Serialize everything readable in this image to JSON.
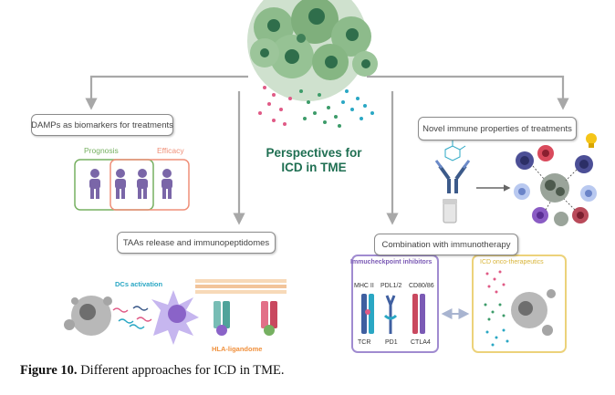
{
  "center_title": [
    "Perspectives for",
    "ICD in TME"
  ],
  "boxes": {
    "damps": "DAMPs as biomarkers for treatments",
    "novel": "Novel immune properties of  treatments",
    "taas": "TAAs release and immunopeptidomes",
    "combination": "Combination with immunotherapy"
  },
  "damps_panel": {
    "prognosis": "Prognosis",
    "efficacy": "Efficacy"
  },
  "taas_panel": {
    "dcs": "DCs activation",
    "hla": "HLA-ligandome"
  },
  "combo_panel": {
    "checkpoint_title": "Immucheckpoint inhibitors",
    "oncotherapeutics_title": "ICD onco-therapeutics",
    "top_labels": [
      "MHC II",
      "PDL1/2",
      "CD80/86"
    ],
    "bottom_labels": [
      "TCR",
      "PD1",
      "CTLA4"
    ]
  },
  "caption": {
    "label": "Figure 10.",
    "text": " Different approaches for ICD in TME."
  },
  "colors": {
    "arrow": "#a8a8a8",
    "title_green": "#1f6f52",
    "prognosis": "#76b061",
    "efficacy": "#ef8f78",
    "dcs": "#2aa7c4",
    "hla": "#f0903c",
    "checkpoint": "#7b5ab5",
    "oncotherapeutics": "#e8c547",
    "person": "#7a66a8",
    "cell_dark": "#3d9c6a"
  }
}
